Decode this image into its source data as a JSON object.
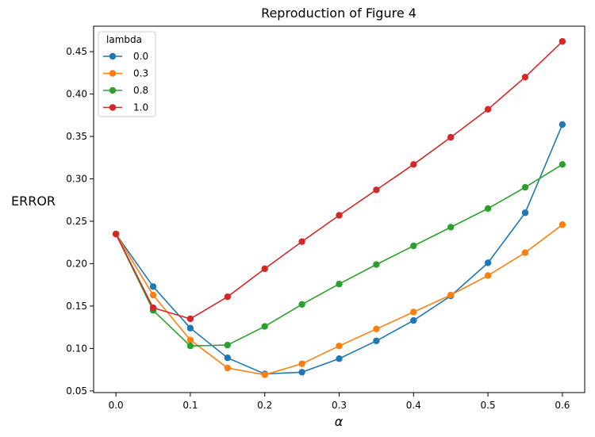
{
  "chart_data": {
    "type": "line",
    "title": "Reproduction of Figure 4",
    "xlabel": "α",
    "ylabel": "ERROR",
    "xlim": [
      -0.03,
      0.63
    ],
    "ylim": [
      0.048,
      0.48
    ],
    "x": [
      0.0,
      0.05,
      0.1,
      0.15,
      0.2,
      0.25,
      0.3,
      0.35,
      0.4,
      0.45,
      0.5,
      0.55,
      0.6
    ],
    "xticks": [
      "0.0",
      "0.1",
      "0.2",
      "0.3",
      "0.4",
      "0.5",
      "0.6"
    ],
    "xtick_values": [
      0.0,
      0.1,
      0.2,
      0.3,
      0.4,
      0.5,
      0.6
    ],
    "yticks": [
      "0.05",
      "0.10",
      "0.15",
      "0.20",
      "0.25",
      "0.30",
      "0.35",
      "0.40",
      "0.45"
    ],
    "ytick_values": [
      0.05,
      0.1,
      0.15,
      0.2,
      0.25,
      0.3,
      0.35,
      0.4,
      0.45
    ],
    "grid": false,
    "legend": {
      "title": "lambda",
      "placement": "top-left"
    },
    "series": [
      {
        "name": "0.0",
        "color": "#1f77b4",
        "values": [
          0.235,
          0.173,
          0.124,
          0.089,
          0.07,
          0.072,
          0.088,
          0.109,
          0.133,
          0.162,
          0.201,
          0.26,
          0.364
        ]
      },
      {
        "name": "0.3",
        "color": "#ff7f0e",
        "values": [
          0.235,
          0.163,
          0.11,
          0.077,
          0.069,
          0.082,
          0.103,
          0.123,
          0.143,
          0.163,
          0.186,
          0.213,
          0.246
        ]
      },
      {
        "name": "0.8",
        "color": "#2ca02c",
        "values": [
          0.235,
          0.145,
          0.103,
          0.104,
          0.126,
          0.152,
          0.176,
          0.199,
          0.221,
          0.243,
          0.265,
          0.29,
          0.317
        ]
      },
      {
        "name": "1.0",
        "color": "#d62728",
        "values": [
          0.235,
          0.148,
          0.135,
          0.161,
          0.194,
          0.226,
          0.257,
          0.287,
          0.317,
          0.349,
          0.382,
          0.42,
          0.462
        ]
      }
    ]
  }
}
